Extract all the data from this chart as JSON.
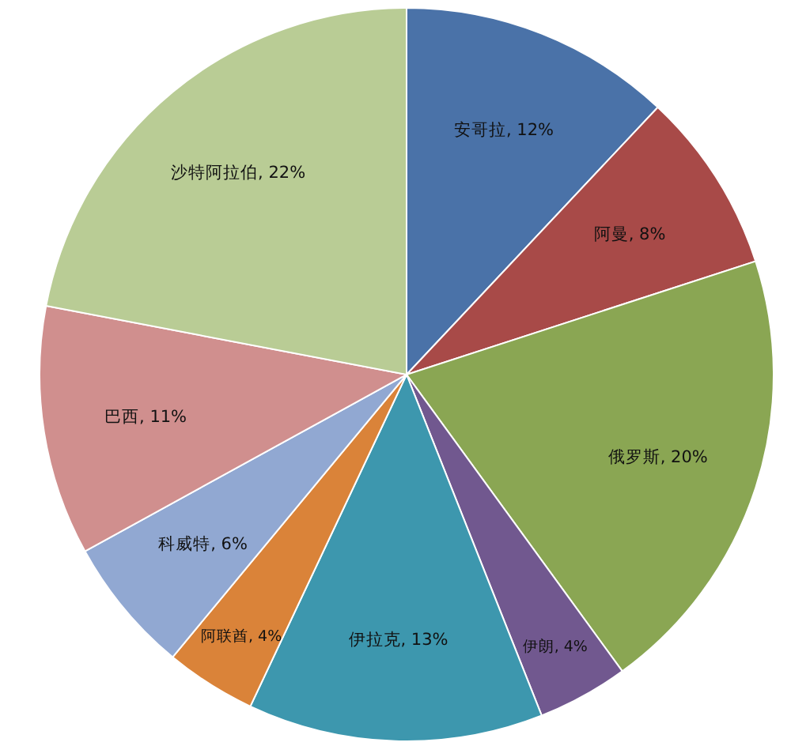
{
  "chart_data": {
    "type": "pie",
    "categories": [
      "安哥拉",
      "阿曼",
      "俄罗斯",
      "伊朗",
      "伊拉克",
      "阿联酋",
      "科威特",
      "巴西",
      "沙特阿拉伯"
    ],
    "values": [
      12,
      8,
      20,
      4,
      13,
      4,
      6,
      11,
      22
    ],
    "value_labels": [
      "12%",
      "8%",
      "20%",
      "4%",
      "13%",
      "4%",
      "6%",
      "11%",
      "22%"
    ],
    "colors": [
      "#4a72a8",
      "#a84a48",
      "#8aa653",
      "#71588f",
      "#3d97ae",
      "#da8339",
      "#91a8d2",
      "#d08f8e",
      "#b9cc95"
    ]
  }
}
